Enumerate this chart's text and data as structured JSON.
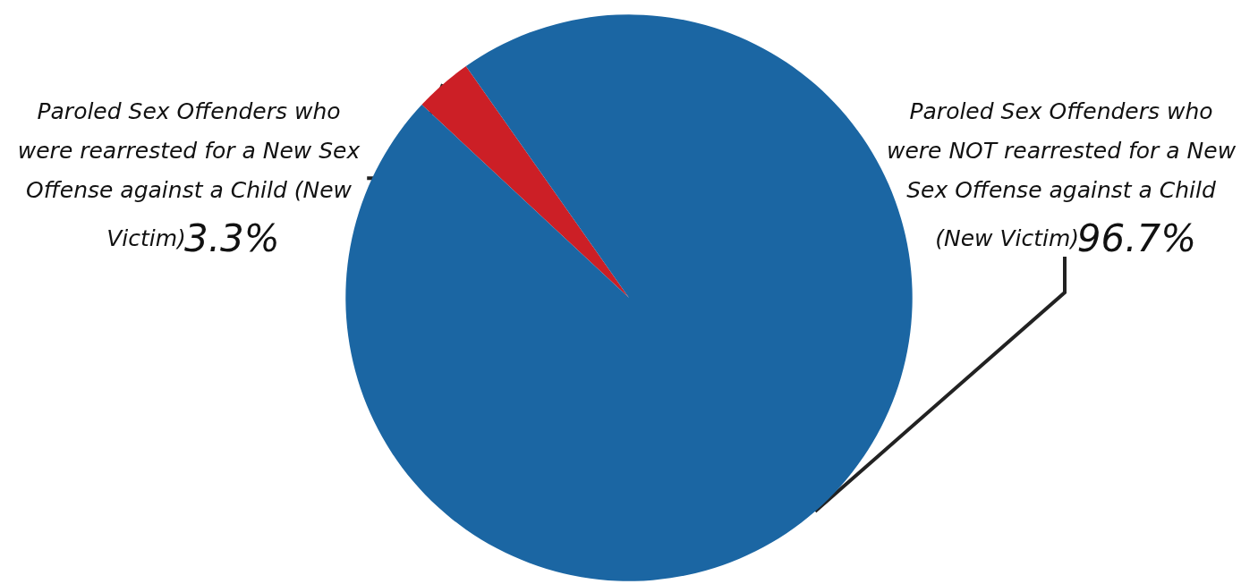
{
  "chart_data": {
    "type": "pie",
    "categories": [
      "Paroled Sex Offenders who were rearrested for a New Sex Offense against a Child (New Victim)",
      "Paroled Sex Offenders who were NOT rearrested for a New Sex Offense against a Child (New Victim)"
    ],
    "values": [
      3.3,
      96.7
    ],
    "value_labels": [
      "3.3%",
      "96.7%"
    ],
    "colors": [
      "#cc1f26",
      "#1b66a3"
    ],
    "legend": false
  }
}
